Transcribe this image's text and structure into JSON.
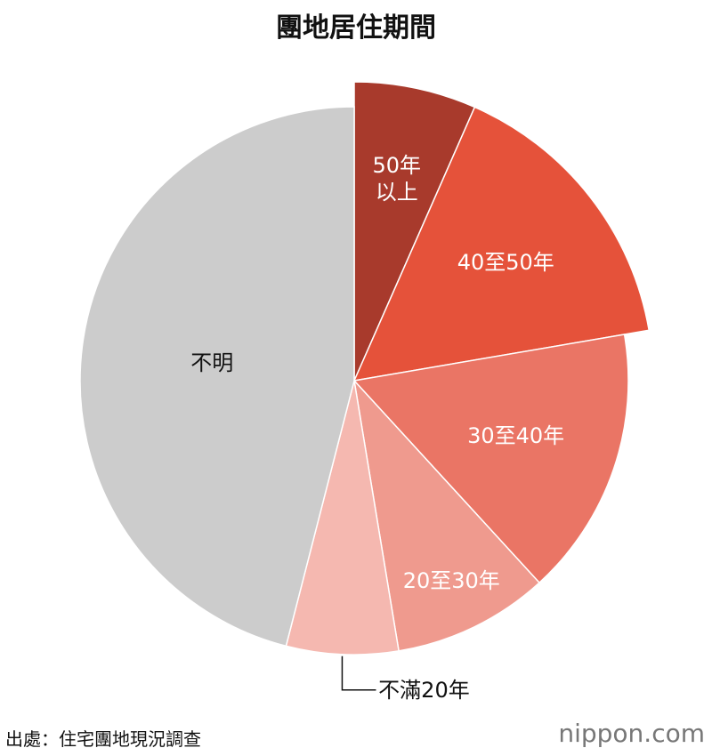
{
  "chart_data": {
    "type": "pie",
    "title": "團地居住期間",
    "categories": [
      "50年以上",
      "40至50年",
      "30至40年",
      "20至30年",
      "不滿20年",
      "不明"
    ],
    "values": [
      6.6,
      15.7,
      15.9,
      9.2,
      6.6,
      46.0
    ],
    "colors": [
      "#a83a2c",
      "#e5523a",
      "#ea7565",
      "#ef9a8e",
      "#f5b8b0",
      "#cccccc"
    ],
    "emphasized_slices": [
      0,
      1
    ],
    "source": "出處：住宅團地現況調查",
    "logo": "nippon.com"
  }
}
